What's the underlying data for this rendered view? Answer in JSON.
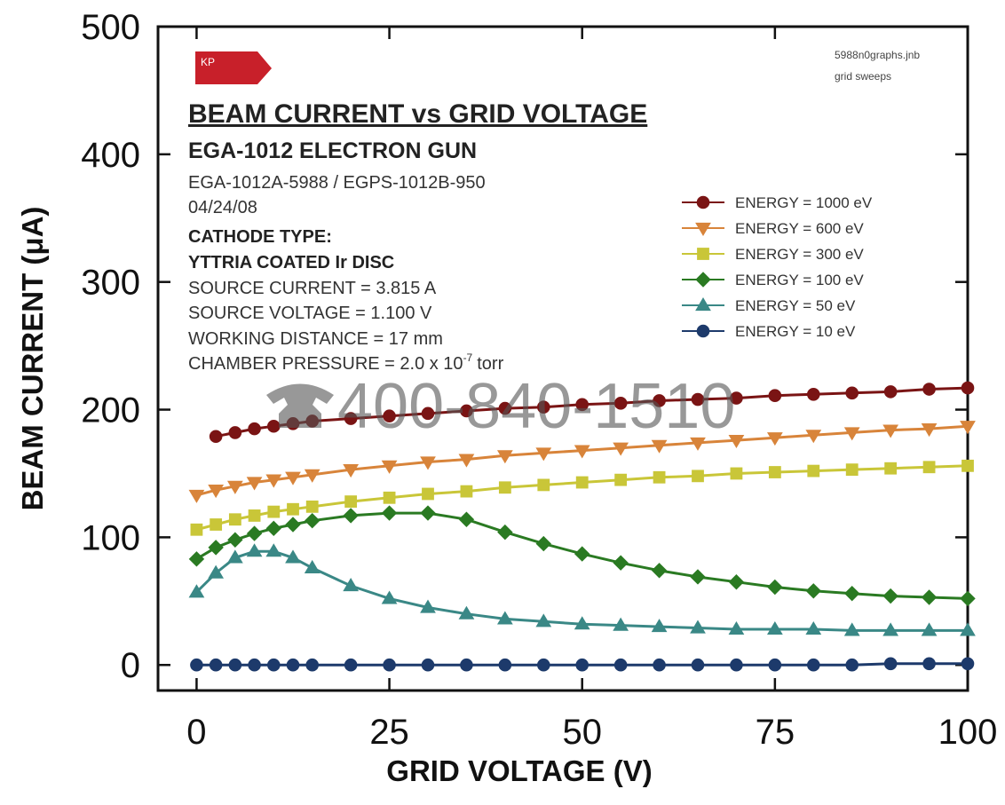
{
  "chart_data": {
    "type": "line",
    "title": "BEAM CURRENT vs GRID VOLTAGE",
    "subtitle": "EGA-1012 ELECTRON GUN",
    "logo": "KP",
    "file_notes": [
      "5988n0graphs.jnb",
      "grid sweeps"
    ],
    "notes": [
      "EGA-1012A-5988 / EGPS-1012B-950",
      "04/24/08"
    ],
    "cathode": [
      "CATHODE TYPE:",
      "YTTRIA COATED Ir DISC"
    ],
    "conditions": [
      "SOURCE CURRENT = 3.815 A",
      "SOURCE VOLTAGE = 1.100 V",
      "WORKING DISTANCE = 17 mm"
    ],
    "pressure": {
      "text": "CHAMBER PRESSURE = 2.0 x 10",
      "exponent": "-7",
      "unit": "torr"
    },
    "watermark": "400-840-1510",
    "x_label": "GRID VOLTAGE (V)",
    "y_label": "BEAM CURRENT (μA)",
    "x": [
      0,
      2.5,
      5,
      7.5,
      10,
      12.5,
      15,
      20,
      25,
      30,
      35,
      40,
      45,
      50,
      55,
      60,
      65,
      70,
      75,
      80,
      85,
      90,
      95,
      100
    ],
    "series": [
      {
        "name": "ENERGY = 1000 eV",
        "color": "#7a1414",
        "marker": "circle",
        "values": [
          null,
          179,
          182,
          185,
          187,
          189,
          191,
          193,
          195,
          197,
          199,
          201,
          202,
          204,
          205,
          207,
          208,
          209,
          211,
          212,
          213,
          214,
          216,
          217
        ]
      },
      {
        "name": "ENERGY = 600 eV",
        "color": "#d8843a",
        "marker": "triangle-down",
        "values": [
          133,
          137,
          140,
          143,
          145,
          147,
          149,
          153,
          156,
          159,
          161,
          164,
          166,
          168,
          170,
          172,
          174,
          176,
          178,
          180,
          182,
          184,
          185,
          187
        ]
      },
      {
        "name": "ENERGY = 300 eV",
        "color": "#c9c638",
        "marker": "square",
        "values": [
          106,
          110,
          114,
          117,
          120,
          122,
          124,
          128,
          131,
          134,
          136,
          139,
          141,
          143,
          145,
          147,
          148,
          150,
          151,
          152,
          153,
          154,
          155,
          156
        ]
      },
      {
        "name": "ENERGY = 100 eV",
        "color": "#2a7a22",
        "marker": "diamond",
        "values": [
          83,
          92,
          98,
          103,
          107,
          110,
          113,
          117,
          119,
          119,
          114,
          104,
          95,
          87,
          80,
          74,
          69,
          65,
          61,
          58,
          56,
          54,
          53,
          52
        ]
      },
      {
        "name": "ENERGY = 50 eV",
        "color": "#3a8886",
        "marker": "triangle-up",
        "values": [
          57,
          72,
          84,
          89,
          89,
          84,
          76,
          62,
          52,
          45,
          40,
          36,
          34,
          32,
          31,
          30,
          29,
          28,
          28,
          28,
          27,
          27,
          27,
          27
        ]
      },
      {
        "name": "ENERGY = 10 eV",
        "color": "#1d3a6b",
        "marker": "circle",
        "values": [
          0,
          0,
          0,
          0,
          0,
          0,
          0,
          0,
          0,
          0,
          0,
          0,
          0,
          0,
          0,
          0,
          0,
          0,
          0,
          0,
          0,
          1,
          1,
          1
        ]
      }
    ],
    "xlim": [
      -5,
      100
    ],
    "ylim": [
      -20,
      500
    ],
    "xticks": [
      0,
      25,
      50,
      75,
      100
    ],
    "yticks": [
      0,
      100,
      200,
      300,
      400,
      500
    ],
    "grid": false,
    "legend": "upper right"
  }
}
